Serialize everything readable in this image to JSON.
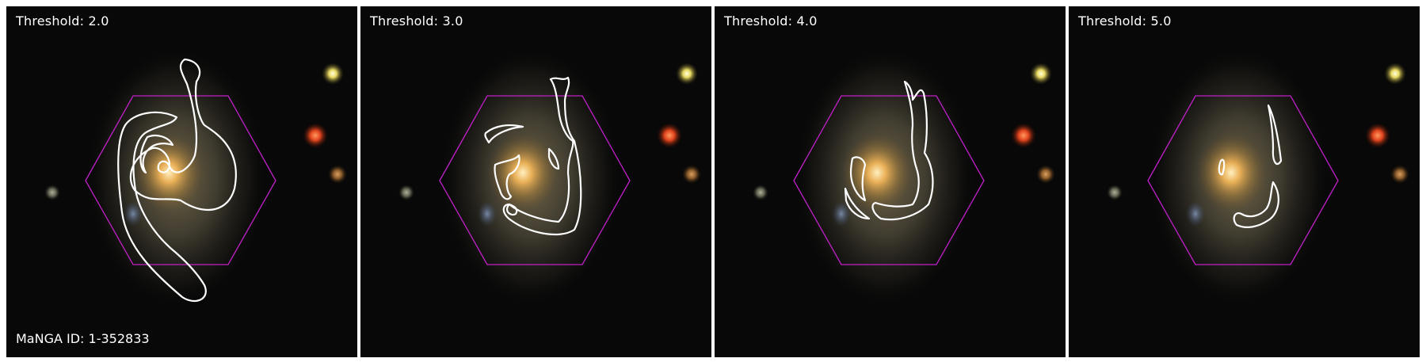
{
  "panels": [
    {
      "label": "Threshold: 2.0"
    },
    {
      "label": "Threshold: 3.0"
    },
    {
      "label": "Threshold: 4.0"
    },
    {
      "label": "Threshold: 5.0"
    }
  ],
  "manga_id": "MaNGA ID: 1-352833",
  "colors": {
    "background": "#080808",
    "hexagon": "#c020c8",
    "contour": "#ffffff",
    "galaxy_core": "#f0b458"
  }
}
